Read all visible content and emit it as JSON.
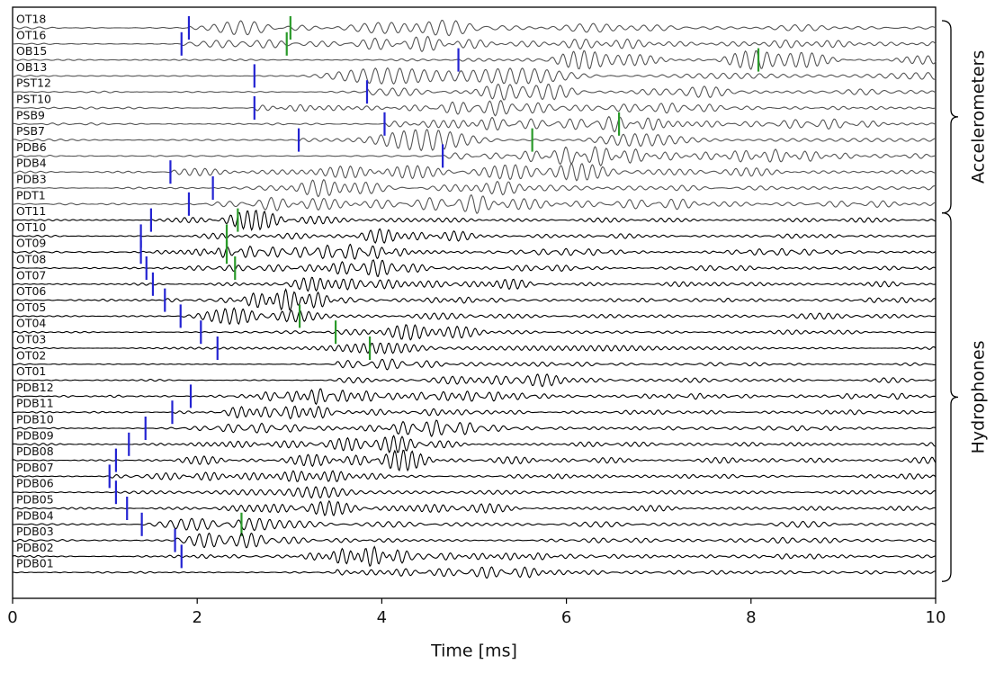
{
  "chart_data": {
    "type": "traces",
    "xlabel": "Time [ms]",
    "xlim": [
      0,
      10
    ],
    "xticks": [
      0,
      2,
      4,
      6,
      8,
      10
    ],
    "p_color": "#2323d2",
    "s_color": "#2a9a2a",
    "groups": [
      {
        "label": "Accelerometers",
        "color": "#555555",
        "traces": [
          {
            "name": "OT18",
            "p_pick": 1.91,
            "s_pick": 3.01
          },
          {
            "name": "OT16",
            "p_pick": 1.83,
            "s_pick": 2.97
          },
          {
            "name": "OB15",
            "p_pick": 4.83,
            "s_pick": 8.08
          },
          {
            "name": "OB13",
            "p_pick": 2.62,
            "s_pick": null
          },
          {
            "name": "PST12",
            "p_pick": 3.84,
            "s_pick": null
          },
          {
            "name": "PST10",
            "p_pick": 2.62,
            "s_pick": null
          },
          {
            "name": "PSB9",
            "p_pick": 4.03,
            "s_pick": 6.57
          },
          {
            "name": "PSB7",
            "p_pick": 3.1,
            "s_pick": 5.63
          },
          {
            "name": "PDB6",
            "p_pick": 4.66,
            "s_pick": null
          },
          {
            "name": "PDB4",
            "p_pick": 1.71,
            "s_pick": null
          },
          {
            "name": "PDB3",
            "p_pick": 2.17,
            "s_pick": null
          },
          {
            "name": "PDT1",
            "p_pick": 1.91,
            "s_pick": null
          }
        ]
      },
      {
        "label": "Hydrophones",
        "color": "#000000",
        "traces": [
          {
            "name": "OT11",
            "p_pick": 1.5,
            "s_pick": 2.44
          },
          {
            "name": "OT10",
            "p_pick": 1.39,
            "s_pick": 2.32
          },
          {
            "name": "OT09",
            "p_pick": 1.39,
            "s_pick": 2.32
          },
          {
            "name": "OT08",
            "p_pick": 1.45,
            "s_pick": 2.41
          },
          {
            "name": "OT07",
            "p_pick": 1.52,
            "s_pick": null
          },
          {
            "name": "OT06",
            "p_pick": 1.65,
            "s_pick": null
          },
          {
            "name": "OT05",
            "p_pick": 1.82,
            "s_pick": 3.11
          },
          {
            "name": "OT04",
            "p_pick": 2.04,
            "s_pick": 3.5
          },
          {
            "name": "OT03",
            "p_pick": 2.22,
            "s_pick": 3.87
          },
          {
            "name": "OT02",
            "p_pick": null,
            "s_pick": null
          },
          {
            "name": "OT01",
            "p_pick": null,
            "s_pick": null
          },
          {
            "name": "PDB12",
            "p_pick": 1.93,
            "s_pick": null
          },
          {
            "name": "PDB11",
            "p_pick": 1.73,
            "s_pick": null
          },
          {
            "name": "PDB10",
            "p_pick": 1.44,
            "s_pick": null
          },
          {
            "name": "PDB09",
            "p_pick": 1.26,
            "s_pick": null
          },
          {
            "name": "PDB08",
            "p_pick": 1.12,
            "s_pick": null
          },
          {
            "name": "PDB07",
            "p_pick": 1.05,
            "s_pick": null
          },
          {
            "name": "PDB06",
            "p_pick": 1.12,
            "s_pick": null
          },
          {
            "name": "PDB05",
            "p_pick": 1.24,
            "s_pick": null
          },
          {
            "name": "PDB04",
            "p_pick": 1.4,
            "s_pick": 2.48
          },
          {
            "name": "PDB03",
            "p_pick": 1.76,
            "s_pick": null
          },
          {
            "name": "PDB02",
            "p_pick": 1.83,
            "s_pick": null
          },
          {
            "name": "PDB01",
            "p_pick": null,
            "s_pick": null
          }
        ]
      }
    ]
  }
}
